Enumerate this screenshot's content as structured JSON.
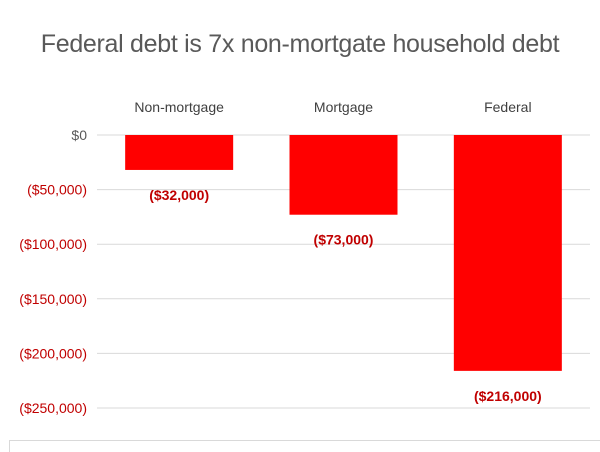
{
  "chart_data": {
    "type": "bar",
    "title": "Federal debt is 7x non-mortgate household debt",
    "categories": [
      "Non-mortgage",
      "Mortgage",
      "Federal"
    ],
    "values": [
      -32000,
      -73000,
      -216000
    ],
    "data_labels": [
      "($32,000)",
      "($73,000)",
      "($216,000)"
    ],
    "ylim": [
      -250000,
      0
    ],
    "y_ticks": [
      0,
      -50000,
      -100000,
      -150000,
      -200000,
      -250000
    ],
    "y_tick_labels": [
      "$0",
      "($50,000)",
      "($100,000)",
      "($150,000)",
      "($200,000)",
      "($250,000)"
    ],
    "category_axis_position": "top",
    "grid": true,
    "legend": "none",
    "colors": {
      "bar": "#ff0000",
      "data_label": "#c00000",
      "negative_tick": "#c00000",
      "zero_tick": "#595959",
      "category_label": "#404040",
      "gridline": "#d9d9d9"
    }
  }
}
